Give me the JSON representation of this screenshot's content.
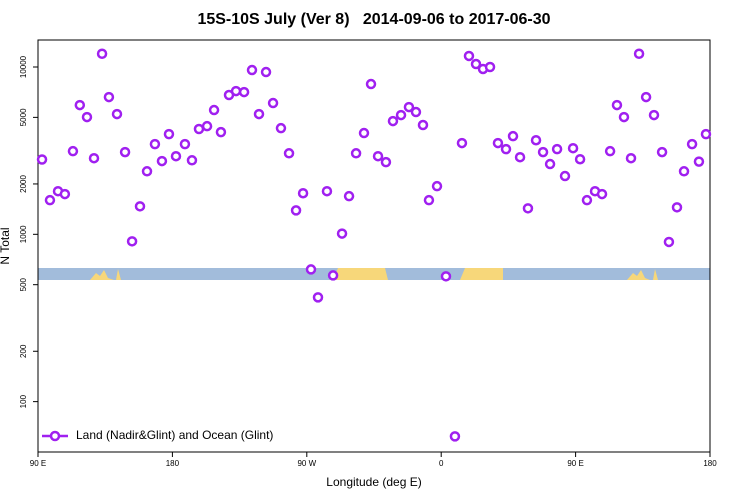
{
  "chart_data": {
    "type": "scatter",
    "title": "15S-10S July (Ver 8)   2014-09-06 to 2017-06-30",
    "xlabel": "Longitude (deg E)",
    "ylabel": "N Total",
    "log_y": true,
    "legend": "bottom left",
    "xlim": [
      90,
      540
    ],
    "xticks": [
      {
        "value": 90,
        "label": "90 E"
      },
      180,
      {
        "value": 270,
        "label": "90 W"
      },
      {
        "value": 360,
        "label": "0"
      },
      {
        "value": 450,
        "label": "90 E"
      },
      {
        "value": 540,
        "label": "180"
      }
    ],
    "ylim": [
      50,
      14500
    ],
    "yticks": [
      100,
      200,
      500,
      1000,
      2000,
      5000,
      10000
    ],
    "series": [
      {
        "name": "Land (Nadir&Glint) and Ocean (Glint)",
        "color": "#a020f0",
        "x": [
          92.7,
          98,
          103.4,
          108,
          113.4,
          118,
          122.8,
          127.5,
          132.9,
          137.5,
          142.9,
          148.3,
          153,
          158.3,
          163,
          168.3,
          173,
          177.7,
          182.4,
          188.4,
          193.1,
          197.8,
          203.2,
          207.9,
          212.5,
          217.9,
          222.6,
          228,
          233.3,
          238,
          242.7,
          247.4,
          252.7,
          258.1,
          262.8,
          267.5,
          272.8,
          277.5,
          283.5,
          287.6,
          293.6,
          298.3,
          303,
          308.3,
          313,
          317.7,
          323,
          327.7,
          333.1,
          338.4,
          343.1,
          347.8,
          351.8,
          357.2,
          363.2,
          369.2,
          373.9,
          378.6,
          383.3,
          388,
          392.7,
          398,
          403.4,
          408.1,
          412.8,
          418.1,
          423.5,
          428.2,
          432.9,
          437.6,
          442.9,
          448.3,
          453,
          457.6,
          463,
          467.7,
          473.1,
          477.7,
          482.4,
          487.1,
          492.5,
          497.2,
          502.5,
          507.9,
          512.5,
          517.9,
          522.6,
          528,
          532.6,
          537.3
        ],
        "values": [
          2800,
          1600,
          1810,
          1740,
          3140,
          5920,
          5020,
          2850,
          12000,
          6610,
          5230,
          3100,
          908,
          1470,
          2380,
          3460,
          2740,
          3970,
          2930,
          3460,
          2770,
          4260,
          4430,
          5530,
          4080,
          6800,
          7180,
          7080,
          9590,
          5230,
          9330,
          6090,
          4310,
          3050,
          1390,
          1760,
          617,
          420,
          1810,
          568,
          1010,
          1690,
          3050,
          4030,
          7910,
          2930,
          2700,
          4750,
          5160,
          5760,
          5380,
          4500,
          1600,
          1940,
          561,
          62,
          3510,
          11640,
          10420,
          9730,
          10000,
          3510,
          3230,
          3860,
          2890,
          1430,
          3650,
          3100,
          2630,
          3230,
          2230,
          3270,
          2810,
          1600,
          1810,
          1740,
          3140,
          5920,
          5020,
          2850,
          12000,
          6610,
          5160,
          3100,
          900,
          1450,
          2380,
          3460,
          2720,
          3970
        ]
      }
    ]
  }
}
